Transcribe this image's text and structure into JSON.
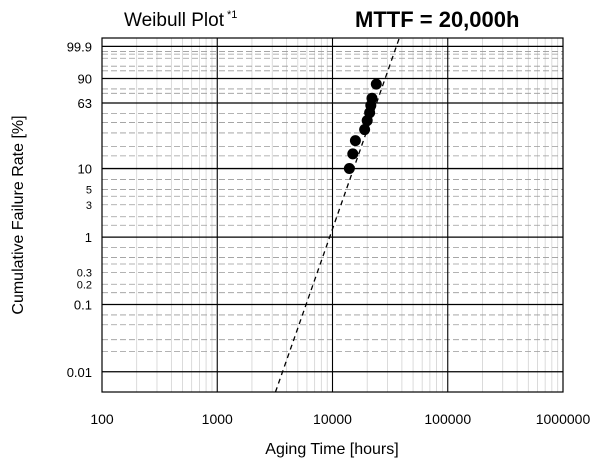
{
  "chart_data": {
    "type": "scatter",
    "title": "Weibull Plot",
    "title_superscript": "*1",
    "headline": "MTTF = 20,000h",
    "xlabel": "Aging Time [hours]",
    "ylabel": "Cumulative Failure Rate [%]",
    "x_scale": "log",
    "y_scale": "weibull",
    "xlim": [
      100,
      1000000
    ],
    "ylim": [
      0.005,
      99.99
    ],
    "x_ticks": [
      {
        "value": 100,
        "label": "100"
      },
      {
        "value": 1000,
        "label": "1000"
      },
      {
        "value": 10000,
        "label": "10000"
      },
      {
        "value": 100000,
        "label": "100000"
      },
      {
        "value": 1000000,
        "label": "1000000"
      }
    ],
    "y_ticks": [
      {
        "value": 0.01,
        "label": "0.01",
        "major": true
      },
      {
        "value": 0.1,
        "label": "0.1",
        "major": true
      },
      {
        "value": 0.2,
        "label": "0.2",
        "major": false
      },
      {
        "value": 0.3,
        "label": "0.3",
        "major": false
      },
      {
        "value": 1,
        "label": "1",
        "major": true
      },
      {
        "value": 3,
        "label": "3",
        "major": false
      },
      {
        "value": 5,
        "label": "5",
        "major": false
      },
      {
        "value": 10,
        "label": "10",
        "major": true
      },
      {
        "value": 63,
        "label": "63",
        "major": true
      },
      {
        "value": 90,
        "label": "90",
        "major": true
      },
      {
        "value": 99.9,
        "label": "99.9",
        "major": true
      }
    ],
    "y_minor_gridlines": [
      0.005,
      0.02,
      0.03,
      0.05,
      0.07,
      0.15,
      0.4,
      0.5,
      0.7,
      1.5,
      2,
      4,
      7,
      15,
      20,
      30,
      40,
      50,
      75,
      80,
      95,
      97,
      99,
      99.5,
      99.7
    ],
    "grid": true,
    "series": [
      {
        "points": [
          {
            "x": 14000,
            "y": 10
          },
          {
            "x": 15000,
            "y": 16
          },
          {
            "x": 15800,
            "y": 24
          },
          {
            "x": 19000,
            "y": 33
          },
          {
            "x": 20000,
            "y": 42
          },
          {
            "x": 21000,
            "y": 51
          },
          {
            "x": 21500,
            "y": 60
          },
          {
            "x": 22000,
            "y": 69
          },
          {
            "x": 24000,
            "y": 85
          }
        ]
      }
    ],
    "fit_line": {
      "style": "dashed",
      "from": {
        "x": 3200,
        "y": 0.005
      },
      "to": {
        "x": 38000,
        "y": 99.99
      }
    }
  }
}
